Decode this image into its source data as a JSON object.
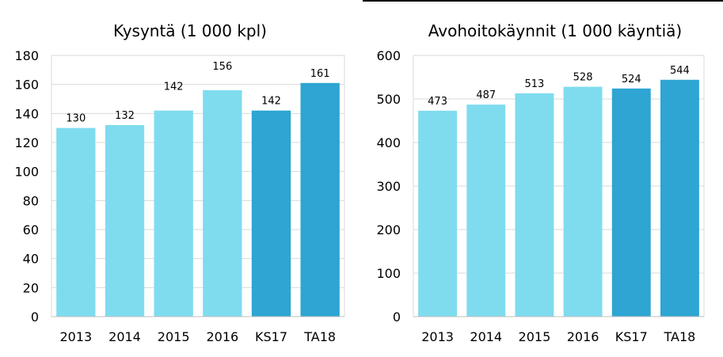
{
  "charts": [
    {
      "title": "Kysyntä (1 000 kpl)",
      "chart_data": {
        "type": "bar",
        "title": "Kysyntä (1 000 kpl)",
        "categories": [
          "2013",
          "2014",
          "2015",
          "2016",
          "KS17",
          "TA18"
        ],
        "values": [
          130,
          132,
          142,
          156,
          142,
          161
        ],
        "data_labels": [
          "130",
          "132",
          "142",
          "156",
          "142",
          "161"
        ],
        "ylim": [
          0,
          180
        ],
        "yticks": [
          0,
          20,
          40,
          60,
          80,
          100,
          120,
          140,
          160,
          180
        ],
        "ytick_labels": [
          "0",
          "20",
          "40",
          "60",
          "80",
          "100",
          "120",
          "140",
          "160",
          "180"
        ],
        "grid": true,
        "legend": "none",
        "bar_colors": [
          "#7fdcef",
          "#7fdcef",
          "#7fdcef",
          "#7fdcef",
          "#2ea5d2",
          "#2ea5d2"
        ],
        "label_offsets": [
          1,
          1,
          4,
          4,
          1,
          1
        ]
      }
    },
    {
      "title": "Avohoitokäynnit (1 000 käyntiä)",
      "chart_data": {
        "type": "bar",
        "title": "Avohoitokäynnit (1 000 käyntiä)",
        "categories": [
          "2013",
          "2014",
          "2015",
          "2016",
          "KS17",
          "TA18"
        ],
        "values": [
          473,
          487,
          513,
          528,
          524,
          544
        ],
        "data_labels": [
          "473",
          "487",
          "513",
          "528",
          "524",
          "544"
        ],
        "ylim": [
          0,
          600
        ],
        "yticks": [
          0,
          100,
          200,
          300,
          400,
          500,
          600
        ],
        "ytick_labels": [
          "0",
          "100",
          "200",
          "300",
          "400",
          "500",
          "600"
        ],
        "grid": true,
        "legend": "none",
        "bar_colors": [
          "#7fdcef",
          "#7fdcef",
          "#7fdcef",
          "#7fdcef",
          "#2ea5d2",
          "#2ea5d2"
        ],
        "label_offsets": [
          1,
          1,
          1,
          1,
          1,
          1
        ]
      }
    }
  ]
}
